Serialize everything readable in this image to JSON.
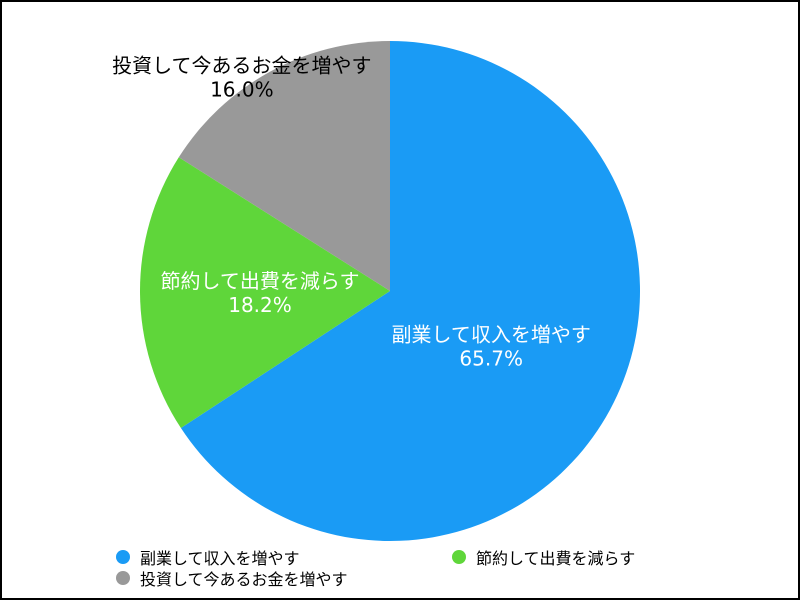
{
  "chart_data": {
    "type": "pie",
    "title": "",
    "value_format": "percent",
    "slices": [
      {
        "label": "副業して収入を増やす",
        "value": 65.7,
        "display": "65.7%",
        "color": "#1a9bf5",
        "label_color": "#ffffff"
      },
      {
        "label": "節約して出費を減らす",
        "value": 18.2,
        "display": "18.2%",
        "color": "#5fd63a",
        "label_color": "#ffffff"
      },
      {
        "label": "投資して今あるお金を増やす",
        "value": 16.0,
        "display": "16.0%",
        "color": "#999999",
        "label_color": "#000000"
      }
    ],
    "start_angle_deg": 0,
    "direction": "clockwise",
    "legend": {
      "placement": "bottom",
      "items": [
        {
          "label": "副業して収入を増やす",
          "color": "#1a9bf5"
        },
        {
          "label": "節約して出費を減らす",
          "color": "#5fd63a"
        },
        {
          "label": "投資して今あるお金を増やす",
          "color": "#999999"
        }
      ]
    }
  }
}
